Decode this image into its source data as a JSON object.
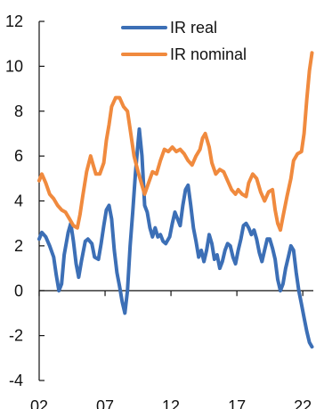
{
  "chart_data": {
    "type": "line",
    "title": "",
    "xlabel": "",
    "ylabel": "",
    "ylim": [
      -4,
      12
    ],
    "yticks": [
      -4,
      -2,
      0,
      2,
      4,
      6,
      8,
      10,
      12
    ],
    "xlim": [
      2002,
      2022.8
    ],
    "xticks": [
      {
        "x": 2002,
        "label": "02"
      },
      {
        "x": 2007,
        "label": "07"
      },
      {
        "x": 2012,
        "label": "12"
      },
      {
        "x": 2017,
        "label": "17"
      },
      {
        "x": 2022,
        "label": "22"
      }
    ],
    "legend_position": "top",
    "grid": false,
    "series": [
      {
        "name": "IR real",
        "color": "#3C6FB6",
        "points": [
          [
            2002.0,
            2.3
          ],
          [
            2002.2,
            2.6
          ],
          [
            2002.5,
            2.4
          ],
          [
            2002.8,
            2.0
          ],
          [
            2003.1,
            1.5
          ],
          [
            2003.3,
            0.7
          ],
          [
            2003.5,
            0.0
          ],
          [
            2003.7,
            0.3
          ],
          [
            2003.9,
            1.6
          ],
          [
            2004.2,
            2.6
          ],
          [
            2004.4,
            3.0
          ],
          [
            2004.6,
            2.2
          ],
          [
            2004.8,
            1.2
          ],
          [
            2005.0,
            0.6
          ],
          [
            2005.2,
            1.3
          ],
          [
            2005.5,
            2.2
          ],
          [
            2005.7,
            2.3
          ],
          [
            2006.0,
            2.1
          ],
          [
            2006.2,
            1.5
          ],
          [
            2006.5,
            1.4
          ],
          [
            2006.7,
            2.1
          ],
          [
            2006.9,
            2.9
          ],
          [
            2007.1,
            3.6
          ],
          [
            2007.3,
            3.8
          ],
          [
            2007.5,
            3.2
          ],
          [
            2007.7,
            1.8
          ],
          [
            2007.9,
            0.8
          ],
          [
            2008.1,
            0.2
          ],
          [
            2008.3,
            -0.5
          ],
          [
            2008.5,
            -1.0
          ],
          [
            2008.7,
            0.0
          ],
          [
            2008.9,
            2.0
          ],
          [
            2009.1,
            3.5
          ],
          [
            2009.3,
            5.2
          ],
          [
            2009.5,
            6.6
          ],
          [
            2009.6,
            7.2
          ],
          [
            2009.8,
            6.0
          ],
          [
            2010.0,
            3.8
          ],
          [
            2010.2,
            3.5
          ],
          [
            2010.4,
            2.8
          ],
          [
            2010.6,
            2.4
          ],
          [
            2010.8,
            2.8
          ],
          [
            2011.0,
            2.4
          ],
          [
            2011.2,
            2.5
          ],
          [
            2011.4,
            2.2
          ],
          [
            2011.6,
            2.1
          ],
          [
            2011.9,
            2.4
          ],
          [
            2012.1,
            3.0
          ],
          [
            2012.3,
            3.5
          ],
          [
            2012.5,
            3.2
          ],
          [
            2012.7,
            2.9
          ],
          [
            2012.9,
            3.8
          ],
          [
            2013.1,
            4.5
          ],
          [
            2013.3,
            4.7
          ],
          [
            2013.5,
            3.8
          ],
          [
            2013.7,
            2.8
          ],
          [
            2013.9,
            2.2
          ],
          [
            2014.1,
            1.5
          ],
          [
            2014.3,
            1.8
          ],
          [
            2014.5,
            1.3
          ],
          [
            2014.7,
            1.8
          ],
          [
            2014.9,
            2.5
          ],
          [
            2015.1,
            2.1
          ],
          [
            2015.3,
            1.4
          ],
          [
            2015.5,
            1.6
          ],
          [
            2015.7,
            1.0
          ],
          [
            2015.9,
            1.3
          ],
          [
            2016.1,
            1.8
          ],
          [
            2016.3,
            2.1
          ],
          [
            2016.5,
            2.0
          ],
          [
            2016.7,
            1.5
          ],
          [
            2016.9,
            1.2
          ],
          [
            2017.1,
            1.8
          ],
          [
            2017.3,
            2.3
          ],
          [
            2017.5,
            2.9
          ],
          [
            2017.7,
            3.0
          ],
          [
            2017.9,
            2.8
          ],
          [
            2018.1,
            2.5
          ],
          [
            2018.3,
            2.7
          ],
          [
            2018.5,
            2.3
          ],
          [
            2018.7,
            1.7
          ],
          [
            2018.9,
            1.3
          ],
          [
            2019.1,
            1.8
          ],
          [
            2019.3,
            2.3
          ],
          [
            2019.5,
            2.3
          ],
          [
            2019.7,
            1.9
          ],
          [
            2019.9,
            1.4
          ],
          [
            2020.1,
            0.5
          ],
          [
            2020.3,
            0.0
          ],
          [
            2020.5,
            0.3
          ],
          [
            2020.7,
            1.0
          ],
          [
            2020.9,
            1.5
          ],
          [
            2021.1,
            2.0
          ],
          [
            2021.3,
            1.8
          ],
          [
            2021.5,
            0.8
          ],
          [
            2021.7,
            0.0
          ],
          [
            2021.9,
            -0.6
          ],
          [
            2022.1,
            -1.2
          ],
          [
            2022.3,
            -1.8
          ],
          [
            2022.5,
            -2.3
          ],
          [
            2022.7,
            -2.5
          ]
        ]
      },
      {
        "name": "IR nominal",
        "color": "#F08A3E",
        "points": [
          [
            2002.0,
            4.9
          ],
          [
            2002.2,
            5.2
          ],
          [
            2002.5,
            4.8
          ],
          [
            2002.8,
            4.3
          ],
          [
            2003.1,
            4.1
          ],
          [
            2003.4,
            3.8
          ],
          [
            2003.7,
            3.6
          ],
          [
            2004.0,
            3.5
          ],
          [
            2004.3,
            3.2
          ],
          [
            2004.6,
            2.9
          ],
          [
            2004.9,
            2.8
          ],
          [
            2005.1,
            3.4
          ],
          [
            2005.3,
            4.2
          ],
          [
            2005.6,
            5.3
          ],
          [
            2005.9,
            6.0
          ],
          [
            2006.1,
            5.6
          ],
          [
            2006.3,
            5.2
          ],
          [
            2006.6,
            5.2
          ],
          [
            2006.9,
            5.7
          ],
          [
            2007.1,
            6.7
          ],
          [
            2007.3,
            7.4
          ],
          [
            2007.5,
            8.2
          ],
          [
            2007.8,
            8.6
          ],
          [
            2008.1,
            8.6
          ],
          [
            2008.4,
            8.2
          ],
          [
            2008.7,
            8.0
          ],
          [
            2008.9,
            7.2
          ],
          [
            2009.2,
            6.0
          ],
          [
            2009.5,
            5.3
          ],
          [
            2009.8,
            4.7
          ],
          [
            2010.0,
            4.3
          ],
          [
            2010.3,
            4.8
          ],
          [
            2010.6,
            5.3
          ],
          [
            2010.9,
            5.2
          ],
          [
            2011.2,
            5.8
          ],
          [
            2011.5,
            6.3
          ],
          [
            2011.8,
            6.2
          ],
          [
            2012.1,
            6.4
          ],
          [
            2012.4,
            6.2
          ],
          [
            2012.7,
            6.3
          ],
          [
            2013.0,
            6.1
          ],
          [
            2013.3,
            5.8
          ],
          [
            2013.6,
            5.6
          ],
          [
            2013.9,
            6.0
          ],
          [
            2014.2,
            6.3
          ],
          [
            2014.4,
            6.8
          ],
          [
            2014.6,
            7.0
          ],
          [
            2014.9,
            6.4
          ],
          [
            2015.1,
            5.7
          ],
          [
            2015.4,
            5.2
          ],
          [
            2015.7,
            5.4
          ],
          [
            2016.0,
            5.3
          ],
          [
            2016.3,
            4.9
          ],
          [
            2016.6,
            4.5
          ],
          [
            2016.9,
            4.3
          ],
          [
            2017.1,
            4.5
          ],
          [
            2017.4,
            4.3
          ],
          [
            2017.7,
            4.2
          ],
          [
            2017.9,
            4.8
          ],
          [
            2018.2,
            5.2
          ],
          [
            2018.5,
            5.0
          ],
          [
            2018.8,
            4.4
          ],
          [
            2019.1,
            4.0
          ],
          [
            2019.4,
            4.4
          ],
          [
            2019.7,
            4.5
          ],
          [
            2019.9,
            3.6
          ],
          [
            2020.1,
            3.0
          ],
          [
            2020.3,
            2.7
          ],
          [
            2020.5,
            3.3
          ],
          [
            2020.8,
            4.2
          ],
          [
            2021.1,
            5.0
          ],
          [
            2021.3,
            5.8
          ],
          [
            2021.6,
            6.1
          ],
          [
            2021.9,
            6.2
          ],
          [
            2022.1,
            7.0
          ],
          [
            2022.3,
            8.5
          ],
          [
            2022.5,
            9.8
          ],
          [
            2022.7,
            10.6
          ]
        ]
      }
    ]
  }
}
